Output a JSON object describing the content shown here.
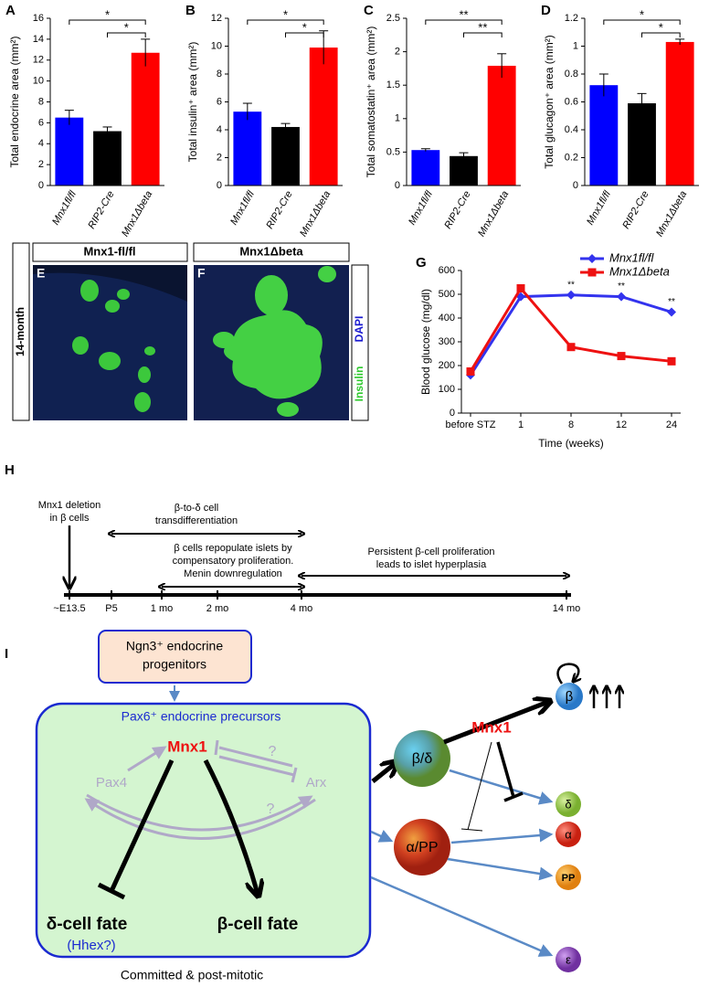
{
  "chart_data": [
    {
      "type": "bar",
      "panel": "A",
      "y_label": "Total endocrine area (mm²)",
      "categories": [
        "Mnx1fl/fl",
        "RIP2-Cre",
        "Mnx1Δbeta"
      ],
      "colors": [
        "#0000ff",
        "#000000",
        "#ff0000"
      ],
      "values": [
        6.5,
        5.2,
        12.7
      ],
      "errors": [
        0.7,
        0.4,
        1.3
      ],
      "ylim": [
        0,
        16
      ],
      "yticks": [
        0,
        2,
        4,
        6,
        8,
        10,
        12,
        14,
        16
      ],
      "significance": [
        {
          "between": [
            "Mnx1fl/fl",
            "Mnx1Δbeta"
          ],
          "label": "*"
        },
        {
          "between": [
            "RIP2-Cre",
            "Mnx1Δbeta"
          ],
          "label": "*"
        }
      ]
    },
    {
      "type": "bar",
      "panel": "B",
      "y_label": "Total insulin⁺ area (mm²)",
      "categories": [
        "Mnx1fl/fl",
        "RIP2-Cre",
        "Mnx1Δbeta"
      ],
      "colors": [
        "#0000ff",
        "#000000",
        "#ff0000"
      ],
      "values": [
        5.3,
        4.2,
        9.9
      ],
      "errors": [
        0.6,
        0.25,
        1.2
      ],
      "ylim": [
        0,
        12
      ],
      "yticks": [
        0,
        2,
        4,
        6,
        8,
        10,
        12
      ],
      "significance": [
        {
          "between": [
            "Mnx1fl/fl",
            "Mnx1Δbeta"
          ],
          "label": "*"
        },
        {
          "between": [
            "RIP2-Cre",
            "Mnx1Δbeta"
          ],
          "label": "*"
        }
      ]
    },
    {
      "type": "bar",
      "panel": "C",
      "y_label": "Total somatostatin⁺ area (mm²)",
      "categories": [
        "Mnx1fl/fl",
        "RIP2-Cre",
        "Mnx1Δbeta"
      ],
      "colors": [
        "#0000ff",
        "#000000",
        "#ff0000"
      ],
      "values": [
        0.53,
        0.44,
        1.79
      ],
      "errors": [
        0.02,
        0.05,
        0.18
      ],
      "ylim": [
        0,
        2.5
      ],
      "yticks": [
        0,
        0.5,
        1,
        1.5,
        2,
        2.5
      ],
      "significance": [
        {
          "between": [
            "Mnx1fl/fl",
            "Mnx1Δbeta"
          ],
          "label": "**"
        },
        {
          "between": [
            "RIP2-Cre",
            "Mnx1Δbeta"
          ],
          "label": "**"
        }
      ]
    },
    {
      "type": "bar",
      "panel": "D",
      "y_label": "Total glucagon⁺ area (mm²)",
      "categories": [
        "Mnx1fl/fl",
        "RIP2-Cre",
        "Mnx1Δbeta"
      ],
      "colors": [
        "#0000ff",
        "#000000",
        "#ff0000"
      ],
      "values": [
        0.72,
        0.59,
        1.03
      ],
      "errors": [
        0.08,
        0.07,
        0.02
      ],
      "ylim": [
        0,
        1.2
      ],
      "yticks": [
        0,
        0.2,
        0.4,
        0.6,
        0.8,
        1,
        1.2
      ],
      "significance": [
        {
          "between": [
            "Mnx1fl/fl",
            "Mnx1Δbeta"
          ],
          "label": "*"
        },
        {
          "between": [
            "RIP2-Cre",
            "Mnx1Δbeta"
          ],
          "label": "*"
        }
      ]
    },
    {
      "type": "line",
      "panel": "G",
      "y_label": "Blood glucose (mg/dl)",
      "x_label": "Time (weeks)",
      "categories": [
        "before STZ",
        "1",
        "8",
        "12",
        "24"
      ],
      "series": [
        {
          "name": "Mnx1fl/fl",
          "color": "#3333ee",
          "marker": "diamond",
          "values": [
            160,
            490,
            497,
            490,
            425
          ]
        },
        {
          "name": "Mnx1Δbeta",
          "color": "#ee1111",
          "marker": "square",
          "values": [
            175,
            525,
            278,
            240,
            218
          ]
        }
      ],
      "ylim": [
        0,
        600
      ],
      "yticks": [
        0,
        100,
        200,
        300,
        400,
        500,
        600
      ],
      "annotations": [
        {
          "category": "8",
          "label": "**"
        },
        {
          "category": "12",
          "label": "**"
        },
        {
          "category": "24",
          "label": "**"
        }
      ],
      "legend": "top-right"
    }
  ],
  "micrographs": {
    "age_label": "14-month",
    "panels": [
      {
        "letter": "E",
        "title": "Mnx1-fl/fl"
      },
      {
        "letter": "F",
        "title": "Mnx1Δbeta"
      }
    ],
    "stain_labels": [
      "Insulin",
      "DAPI"
    ]
  },
  "timeline": {
    "panel": "H",
    "ticks": [
      "~E13.5",
      "P5",
      "1 mo",
      "2 mo",
      "4 mo",
      "14 mo"
    ],
    "events": [
      [
        "Mnx1 deletion",
        "in β cells"
      ],
      [
        "β-to-δ cell",
        "transdifferentiation"
      ],
      [
        "β cells repopulate islets by",
        "compensatory proliferation.",
        "Menin downregulation"
      ],
      [
        "Persistent β-cell proliferation",
        "leads to islet hyperplasia"
      ]
    ]
  },
  "diagram": {
    "panel": "I",
    "progenitors": [
      "Ngn3⁺ endocrine",
      "progenitors"
    ],
    "precursors": "Pax6⁺ endocrine precursors",
    "mnx1": "Mnx1",
    "pax4": "Pax4",
    "arx": "Arx",
    "unknown": "?",
    "delta_fate": "δ-cell fate",
    "hhex": "(Hhex?)",
    "beta_fate": "β-cell fate",
    "committed": "Committed & post-mitotic",
    "mnx1_right": "Mnx1",
    "cells": [
      "β/δ",
      "α/PP",
      "β",
      "δ",
      "α",
      "PP",
      "ε"
    ]
  }
}
